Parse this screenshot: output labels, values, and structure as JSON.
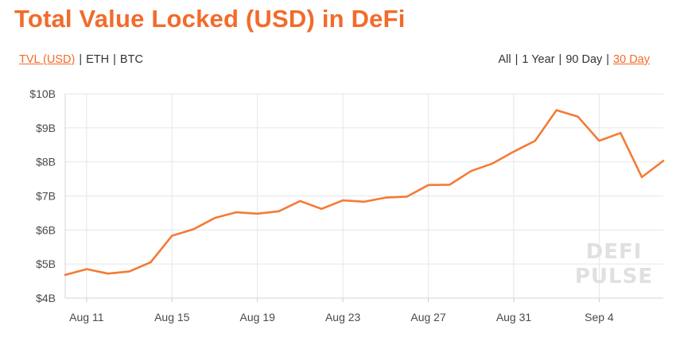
{
  "title": "Total Value Locked (USD) in DeFi",
  "currency_options": [
    {
      "label": "TVL (USD)",
      "active": true
    },
    {
      "label": "ETH",
      "active": false
    },
    {
      "label": "BTC",
      "active": false
    }
  ],
  "range_options": [
    {
      "label": "All",
      "active": false
    },
    {
      "label": "1 Year",
      "active": false
    },
    {
      "label": "90 Day",
      "active": false
    },
    {
      "label": "30 Day",
      "active": true
    }
  ],
  "watermark": [
    "DEFI",
    "PULSE"
  ],
  "colors": {
    "accent": "#f26b2b",
    "line": "#f47b35",
    "grid": "#e6e6e6",
    "text": "#333333"
  },
  "chart_data": {
    "type": "line",
    "xlabel": "",
    "ylabel": "",
    "grid": true,
    "y_unit": "USD billions",
    "ylim": [
      4,
      10
    ],
    "yticks": [
      4,
      5,
      6,
      7,
      8,
      9,
      10
    ],
    "ytick_labels": [
      "$4B",
      "$5B",
      "$6B",
      "$7B",
      "$8B",
      "$9B",
      "$10B"
    ],
    "x_domain": [
      "Aug 10",
      "Sep 7"
    ],
    "xtick_values": [
      "Aug 11",
      "Aug 15",
      "Aug 19",
      "Aug 23",
      "Aug 27",
      "Aug 31",
      "Sep 4"
    ],
    "xtick_labels": [
      "Aug 11",
      "Aug 15",
      "Aug 19",
      "Aug 23",
      "Aug 27",
      "Aug 31",
      "Sep 4"
    ],
    "series": [
      {
        "x": [
          "Aug 10",
          "Aug 11",
          "Aug 12",
          "Aug 13",
          "Aug 14",
          "Aug 15",
          "Aug 16",
          "Aug 17",
          "Aug 18",
          "Aug 19",
          "Aug 20",
          "Aug 21",
          "Aug 22",
          "Aug 23",
          "Aug 24",
          "Aug 25",
          "Aug 26",
          "Aug 27",
          "Aug 28",
          "Aug 29",
          "Aug 30",
          "Aug 31",
          "Sep 1",
          "Sep 2",
          "Sep 3",
          "Sep 4",
          "Sep 5",
          "Sep 6",
          "Sep 7"
        ],
        "values": [
          4.68,
          4.85,
          4.72,
          4.78,
          5.05,
          5.83,
          6.02,
          6.35,
          6.52,
          6.48,
          6.55,
          6.85,
          6.62,
          6.87,
          6.83,
          6.95,
          6.98,
          7.32,
          7.33,
          7.73,
          7.95,
          8.3,
          8.62,
          9.52,
          9.33,
          8.62,
          8.85,
          7.55,
          8.03
        ]
      }
    ]
  }
}
